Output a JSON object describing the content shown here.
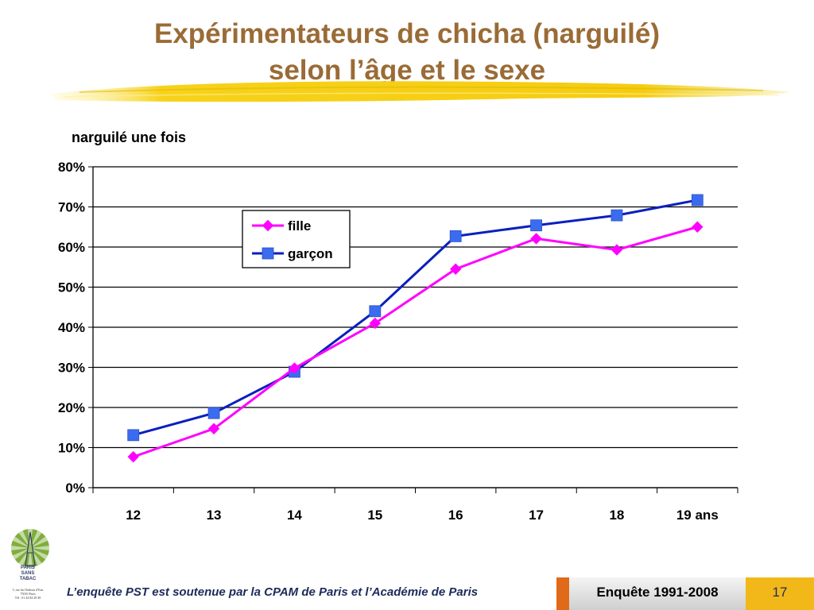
{
  "slide": {
    "title_line1": "Expérimentateurs de chicha (narguilé)",
    "title_line2": "selon l’âge et le sexe",
    "footer_text": "L’enquête PST est soutenue par la CPAM de Paris et l’Académie de Paris",
    "survey_label": "Enquête 1991-2008",
    "page_number": "17",
    "logo_text": [
      "PARIS",
      "SANS",
      "TABAC"
    ],
    "logo_address": [
      "5, rue du Château d’Eau",
      "75010 Paris",
      "Tél : 01 44 84 29 49"
    ]
  },
  "chart_data": {
    "type": "line",
    "title": "narguilé une fois",
    "categories": [
      "12",
      "13",
      "14",
      "15",
      "16",
      "17",
      "18",
      "19 ans"
    ],
    "ylim": [
      0,
      80
    ],
    "yticks": [
      "0%",
      "10%",
      "20%",
      "30%",
      "40%",
      "50%",
      "60%",
      "70%",
      "80%"
    ],
    "grid": true,
    "legend_position": "top-center",
    "series": [
      {
        "name": "fille",
        "color": "#ff00ff",
        "marker": "diamond",
        "values": [
          7.7,
          14.7,
          29.8,
          41.0,
          54.5,
          62.1,
          59.3,
          65.0
        ]
      },
      {
        "name": "garçon",
        "color": "#0a1fbf",
        "marker": "square",
        "marker_color": "#3b6cf0",
        "values": [
          13.1,
          18.6,
          28.9,
          44.0,
          62.7,
          65.4,
          67.9,
          71.7
        ]
      }
    ]
  }
}
